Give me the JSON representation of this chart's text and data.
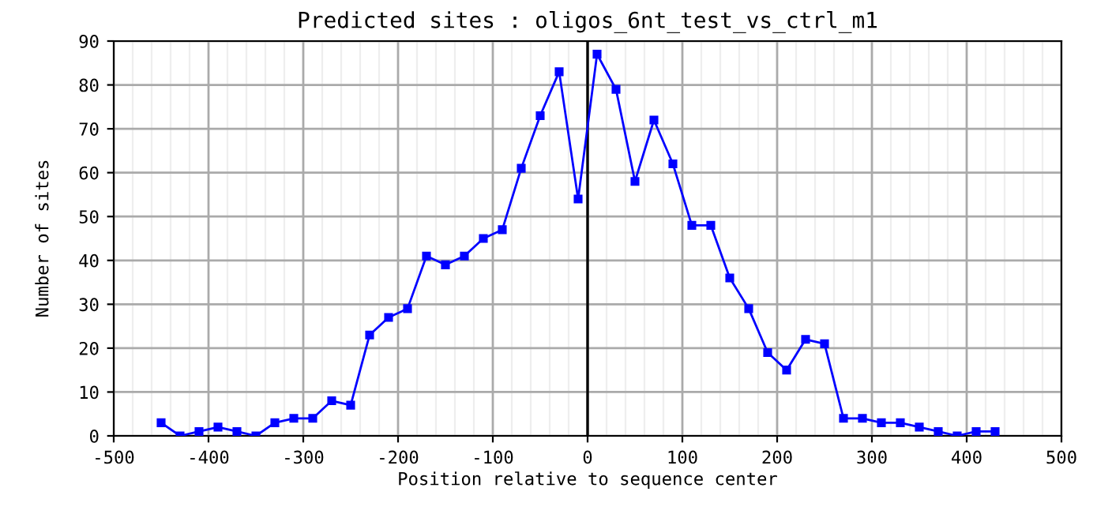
{
  "chart_data": {
    "type": "line",
    "title": "Predicted sites : oligos_6nt_test_vs_ctrl_m1",
    "xlabel": "Position relative to sequence center",
    "ylabel": "Number of sites",
    "x": [
      -450,
      -430,
      -410,
      -390,
      -370,
      -350,
      -330,
      -310,
      -290,
      -270,
      -250,
      -230,
      -210,
      -190,
      -170,
      -150,
      -130,
      -110,
      -90,
      -70,
      -50,
      -30,
      -10,
      10,
      30,
      50,
      70,
      90,
      110,
      130,
      150,
      170,
      190,
      210,
      230,
      250,
      270,
      290,
      310,
      330,
      350,
      370,
      390,
      410,
      430
    ],
    "series": [
      {
        "color": "#0000ff",
        "values": [
          3,
          0,
          1,
          2,
          1,
          0,
          3,
          4,
          4,
          8,
          7,
          23,
          27,
          29,
          41,
          39,
          41,
          45,
          47,
          61,
          73,
          83,
          54,
          87,
          79,
          58,
          72,
          62,
          48,
          48,
          36,
          29,
          19,
          15,
          22,
          21,
          4,
          4,
          3,
          3,
          2,
          1,
          0,
          1,
          1
        ]
      }
    ],
    "xlim": [
      -500,
      500
    ],
    "xticks": [
      -500,
      -400,
      -300,
      -200,
      -100,
      0,
      100,
      200,
      300,
      400,
      500
    ],
    "ylim": [
      0,
      90
    ],
    "yticks": [
      0,
      10,
      20,
      30,
      40,
      50,
      60,
      70,
      80,
      90
    ],
    "ref_lines": [
      {
        "axis": "x",
        "value": 0,
        "color": "#000000"
      }
    ],
    "grid": true,
    "marker": "square",
    "line_style": "solid",
    "legend": false
  }
}
